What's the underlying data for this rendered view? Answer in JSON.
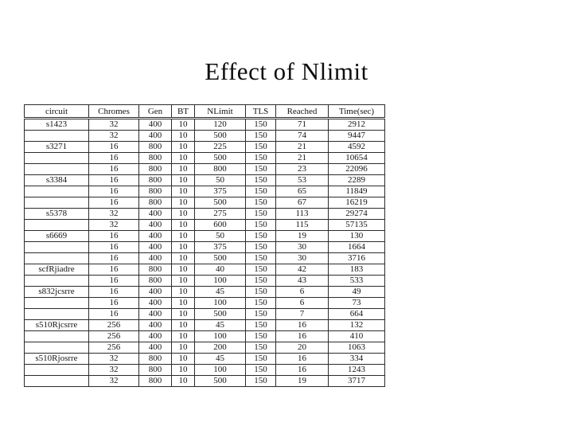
{
  "slide": {
    "title": "Effect of Nlimit"
  },
  "colors": {
    "background": "#ffffff",
    "text": "#111111",
    "table_border": "#2b2b2b"
  },
  "table": {
    "headers": [
      "circuit",
      "Chromes",
      "Gen",
      "BT",
      "NLimit",
      "TLS",
      "Reached",
      "Time(sec)"
    ],
    "rows": [
      [
        "s1423",
        "32",
        "400",
        "10",
        "120",
        "150",
        "71",
        "2912"
      ],
      [
        "",
        "32",
        "400",
        "10",
        "500",
        "150",
        "74",
        "9447"
      ],
      [
        "s3271",
        "16",
        "800",
        "10",
        "225",
        "150",
        "21",
        "4592"
      ],
      [
        "",
        "16",
        "800",
        "10",
        "500",
        "150",
        "21",
        "10654"
      ],
      [
        "",
        "16",
        "800",
        "10",
        "800",
        "150",
        "23",
        "22096"
      ],
      [
        "s3384",
        "16",
        "800",
        "10",
        "50",
        "150",
        "53",
        "2289"
      ],
      [
        "",
        "16",
        "800",
        "10",
        "375",
        "150",
        "65",
        "11849"
      ],
      [
        "",
        "16",
        "800",
        "10",
        "500",
        "150",
        "67",
        "16219"
      ],
      [
        "s5378",
        "32",
        "400",
        "10",
        "275",
        "150",
        "113",
        "29274"
      ],
      [
        "",
        "32",
        "400",
        "10",
        "600",
        "150",
        "115",
        "57135"
      ],
      [
        "s6669",
        "16",
        "400",
        "10",
        "50",
        "150",
        "19",
        "130"
      ],
      [
        "",
        "16",
        "400",
        "10",
        "375",
        "150",
        "30",
        "1664"
      ],
      [
        "",
        "16",
        "400",
        "10",
        "500",
        "150",
        "30",
        "3716"
      ],
      [
        "scfRjiadre",
        "16",
        "800",
        "10",
        "40",
        "150",
        "42",
        "183"
      ],
      [
        "",
        "16",
        "800",
        "10",
        "100",
        "150",
        "43",
        "533"
      ],
      [
        "s832jcsrre",
        "16",
        "400",
        "10",
        "45",
        "150",
        "6",
        "49"
      ],
      [
        "",
        "16",
        "400",
        "10",
        "100",
        "150",
        "6",
        "73"
      ],
      [
        "",
        "16",
        "400",
        "10",
        "500",
        "150",
        "7",
        "664"
      ],
      [
        "s510Rjcsrre",
        "256",
        "400",
        "10",
        "45",
        "150",
        "16",
        "132"
      ],
      [
        "",
        "256",
        "400",
        "10",
        "100",
        "150",
        "16",
        "410"
      ],
      [
        "",
        "256",
        "400",
        "10",
        "200",
        "150",
        "20",
        "1063"
      ],
      [
        "s510Rjosrre",
        "32",
        "800",
        "10",
        "45",
        "150",
        "16",
        "334"
      ],
      [
        "",
        "32",
        "800",
        "10",
        "100",
        "150",
        "16",
        "1243"
      ],
      [
        "",
        "32",
        "800",
        "10",
        "500",
        "150",
        "19",
        "3717"
      ]
    ]
  }
}
